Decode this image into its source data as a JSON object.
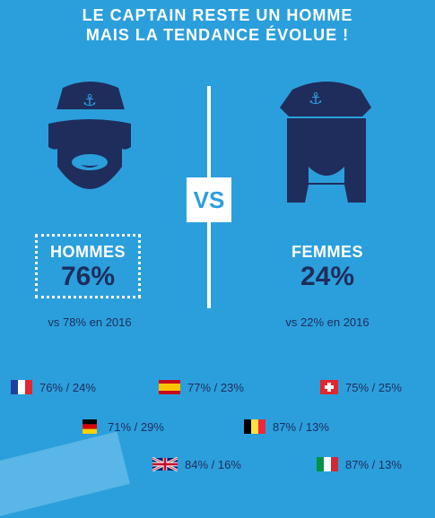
{
  "title": {
    "line1": "LE CAPTAIN RESTE UN HOMME",
    "line2": "MAIS LA TENDANCE ÉVOLUE !"
  },
  "vs_label": "VS",
  "hommes": {
    "label": "HOMMES",
    "percent": "76%",
    "previous": "vs 78% en 2016"
  },
  "femmes": {
    "label": "FEMMES",
    "percent": "24%",
    "previous": "vs 22% en 2016"
  },
  "countries": [
    {
      "flag": "france-flag",
      "value": "76% / 24%"
    },
    {
      "flag": "spain-flag",
      "value": "77% / 23%"
    },
    {
      "flag": "switzerland-flag",
      "value": "75% / 25%"
    },
    {
      "flag": "germany-flag",
      "value": "71% / 29%"
    },
    {
      "flag": "belgium-flag",
      "value": "87% / 13%"
    },
    {
      "flag": "uk-flag",
      "value": "84% / 16%"
    },
    {
      "flag": "italy-flag",
      "value": "87% / 13%"
    }
  ],
  "colors": {
    "background": "#2b9fdc",
    "navy": "#1f2d5c",
    "white": "#ffffff"
  }
}
